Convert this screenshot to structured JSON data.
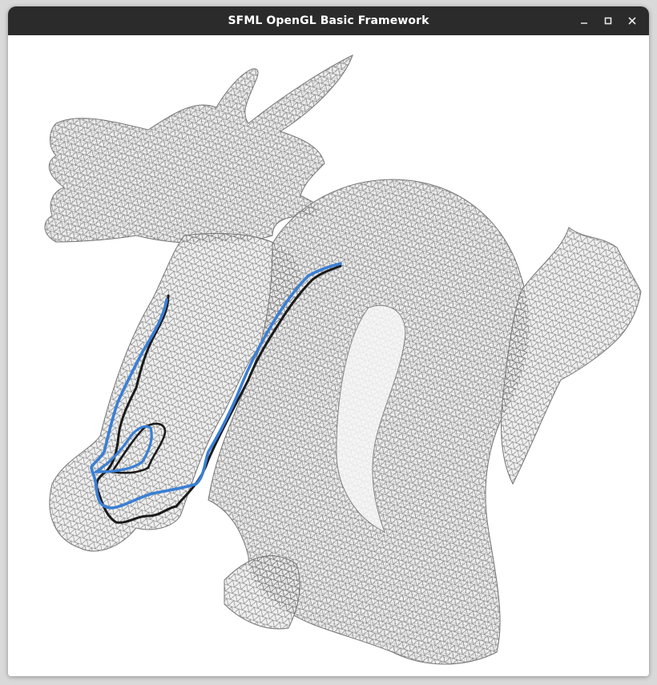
{
  "window": {
    "title": "SFML OpenGL Basic Framework",
    "controls": {
      "minimize_icon": "minimize-icon",
      "maximize_icon": "maximize-icon",
      "close_icon": "close-icon"
    }
  },
  "scene": {
    "model": "dragon-mesh-wireframe",
    "mesh_fill_color": "#efefef",
    "wire_color": "#6f6f6f",
    "paths": [
      {
        "name": "computed-path",
        "color": "#1a1a1a"
      },
      {
        "name": "smoothed-path",
        "color": "#3a7fd5"
      }
    ]
  }
}
